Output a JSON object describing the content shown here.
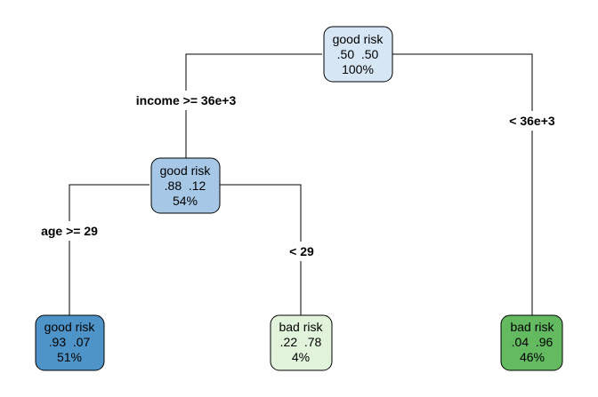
{
  "diagram": {
    "nodes": {
      "root": {
        "class": "good risk",
        "probs": ".50  .50",
        "percent": "100%",
        "color": "#d6e6f4"
      },
      "income_yes": {
        "class": "good risk",
        "probs": ".88  .12",
        "percent": "54%",
        "color": "#a6c8e6"
      },
      "age_yes": {
        "class": "good risk",
        "probs": ".93  .07",
        "percent": "51%",
        "color": "#4f94c8"
      },
      "age_no": {
        "class": "bad risk",
        "probs": ".22  .78",
        "percent": "4%",
        "color": "#e1f3db"
      },
      "income_no": {
        "class": "bad risk",
        "probs": ".04  .96",
        "percent": "46%",
        "color": "#63ba60"
      }
    },
    "splits": {
      "income_left": "income >= 36e+3",
      "income_right": "< 36e+3",
      "age_left": "age >= 29",
      "age_right": "< 29"
    }
  }
}
